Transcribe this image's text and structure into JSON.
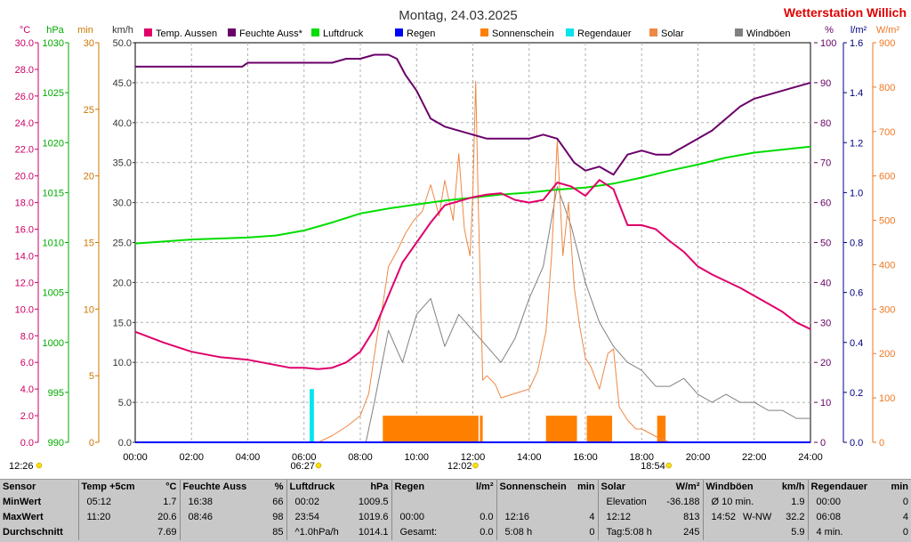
{
  "title": "Montag, 24.03.2025",
  "station": "Wetterstation Willich",
  "axis_units": {
    "temp": "°C",
    "pressure": "hPa",
    "minutes": "min",
    "wind": "km/h",
    "humidity": "%",
    "rain": "l/m²",
    "solar": "W/m²"
  },
  "colors": {
    "temp": "#e0006a",
    "humidity": "#6a006a",
    "pressure": "#00dd00",
    "rain": "#0000ff",
    "sunshine": "#ff8000",
    "rainduration": "#00e5ee",
    "solar": "#ee8844",
    "wind": "#808080"
  },
  "legend": [
    {
      "label": "Temp. Aussen",
      "color": "#e0006a"
    },
    {
      "label": "Feuchte Auss*",
      "color": "#6a006a"
    },
    {
      "label": "Luftdruck",
      "color": "#00dd00"
    },
    {
      "label": "Regen",
      "color": "#0000ff"
    },
    {
      "label": "Sonnenschein",
      "color": "#ff8000"
    },
    {
      "label": "Regendauer",
      "color": "#00e5ee"
    },
    {
      "label": "Solar",
      "color": "#ee8844"
    },
    {
      "label": "Windböen",
      "color": "#808080"
    }
  ],
  "time_markers": [
    {
      "label": "12:26",
      "hour": null
    },
    {
      "label": "06:27",
      "hour": 6.45
    },
    {
      "label": "12:02",
      "hour": 12.03
    },
    {
      "label": "18:54",
      "hour": 18.9
    }
  ],
  "chart_data": {
    "type": "line",
    "x_ticks": [
      "00:00",
      "02:00",
      "04:00",
      "06:00",
      "08:00",
      "10:00",
      "12:00",
      "14:00",
      "16:00",
      "18:00",
      "20:00",
      "22:00",
      "24:00"
    ],
    "xlim": [
      0,
      24
    ],
    "axes": {
      "temp": {
        "lim": [
          0,
          30
        ],
        "ticks": [
          "0.0",
          "2.0",
          "4.0",
          "6.0",
          "8.0",
          "10.0",
          "12.0",
          "14.0",
          "16.0",
          "18.0",
          "20.0",
          "22.0",
          "24.0",
          "26.0",
          "28.0",
          "30.0"
        ]
      },
      "pressure": {
        "lim": [
          990,
          1030
        ],
        "ticks": [
          "990",
          "995",
          "1000",
          "1005",
          "1010",
          "1015",
          "1020",
          "1025",
          "1030"
        ]
      },
      "minutes": {
        "lim": [
          0,
          30
        ],
        "ticks": [
          "0",
          "5",
          "10",
          "15",
          "20",
          "25",
          "30"
        ]
      },
      "wind": {
        "lim": [
          0,
          50
        ],
        "ticks": [
          "0.0",
          "5.0",
          "10.0",
          "15.0",
          "20.0",
          "25.0",
          "30.0",
          "35.0",
          "40.0",
          "45.0",
          "50.0"
        ]
      },
      "humidity": {
        "lim": [
          0,
          100
        ],
        "ticks": [
          "0",
          "10",
          "20",
          "30",
          "40",
          "50",
          "60",
          "70",
          "80",
          "90",
          "100"
        ]
      },
      "rain": {
        "lim": [
          0,
          1.6
        ],
        "ticks": [
          "0.0",
          "0.2",
          "0.4",
          "0.6",
          "0.8",
          "1.0",
          "1.2",
          "1.4",
          "1.6"
        ]
      },
      "solar": {
        "lim": [
          0,
          900
        ],
        "ticks": [
          "0",
          "100",
          "200",
          "300",
          "400",
          "500",
          "600",
          "700",
          "800",
          "900"
        ]
      }
    },
    "series": [
      {
        "name": "Temp. Aussen",
        "axis": "temp",
        "x": [
          0,
          1,
          2,
          3,
          4,
          5,
          5.5,
          6,
          6.5,
          7,
          7.5,
          8,
          8.5,
          9,
          9.5,
          10,
          10.5,
          11,
          11.5,
          12,
          12.5,
          13,
          13.5,
          14,
          14.5,
          15,
          15.5,
          16,
          16.5,
          17,
          17.5,
          18,
          18.5,
          19,
          19.5,
          20,
          20.5,
          21,
          21.5,
          22,
          22.5,
          23,
          23.5,
          24
        ],
        "y": [
          8.3,
          7.5,
          6.8,
          6.4,
          6.2,
          5.8,
          5.6,
          5.6,
          5.5,
          5.6,
          6.0,
          6.8,
          8.5,
          11.0,
          13.5,
          15.0,
          16.5,
          17.8,
          18.1,
          18.4,
          18.6,
          18.7,
          18.2,
          18.0,
          18.2,
          19.5,
          19.2,
          18.5,
          19.7,
          19.0,
          16.3,
          16.3,
          16.0,
          15.1,
          14.3,
          13.2,
          12.6,
          12.1,
          11.6,
          11.0,
          10.4,
          9.8,
          9.0,
          8.5
        ]
      },
      {
        "name": "Feuchte Auss*",
        "axis": "humidity",
        "x": [
          0,
          1,
          2,
          3,
          3.8,
          4,
          5,
          5.5,
          6,
          6.5,
          7,
          7.5,
          8,
          8.5,
          9,
          9.3,
          9.6,
          10,
          10.5,
          11,
          11.5,
          12,
          12.5,
          13,
          13.5,
          14,
          14.5,
          15,
          15.3,
          15.6,
          16,
          16.5,
          17,
          17.5,
          18,
          18.5,
          19,
          19.5,
          20,
          20.5,
          21,
          21.5,
          22,
          22.5,
          23,
          23.5,
          24
        ],
        "y": [
          94,
          94,
          94,
          94,
          94,
          95,
          95,
          95,
          95,
          95,
          95,
          96,
          96,
          97,
          97,
          96,
          92,
          88,
          81,
          79,
          78,
          77,
          76,
          76,
          76,
          76,
          77,
          76,
          73,
          70,
          68,
          69,
          67,
          72,
          73,
          72,
          72,
          74,
          76,
          78,
          81,
          84,
          86,
          87,
          88,
          89,
          90
        ]
      },
      {
        "name": "Luftdruck",
        "axis": "pressure",
        "x": [
          0,
          1,
          2,
          3,
          4,
          5,
          6,
          7,
          8,
          9,
          10,
          11,
          12,
          13,
          14,
          15,
          16,
          17,
          18,
          19,
          20,
          21,
          22,
          23,
          24
        ],
        "y": [
          1009.9,
          1010.1,
          1010.3,
          1010.4,
          1010.5,
          1010.7,
          1011.2,
          1012.0,
          1012.9,
          1013.4,
          1013.8,
          1014.2,
          1014.5,
          1014.8,
          1015.0,
          1015.3,
          1015.5,
          1015.9,
          1016.5,
          1017.2,
          1017.8,
          1018.5,
          1019.0,
          1019.3,
          1019.6
        ]
      },
      {
        "name": "Regen",
        "axis": "rain",
        "x": [
          0,
          24
        ],
        "y": [
          0,
          0
        ]
      },
      {
        "name": "Solar",
        "axis": "solar",
        "x": [
          0,
          6.5,
          7,
          7.5,
          8,
          8.3,
          8.6,
          8.8,
          9,
          9.3,
          9.6,
          9.9,
          10.2,
          10.5,
          10.8,
          11,
          11.3,
          11.5,
          11.7,
          11.9,
          12.0,
          12.1,
          12.2,
          12.35,
          12.5,
          12.8,
          13,
          13.5,
          14,
          14.3,
          14.6,
          14.8,
          15,
          15.2,
          15.4,
          15.6,
          15.8,
          16.0,
          16.2,
          16.5,
          16.8,
          17,
          17.2,
          17.5,
          17.8,
          18,
          18.3,
          18.6,
          19,
          24
        ],
        "y": [
          0,
          0,
          15,
          35,
          60,
          110,
          240,
          310,
          395,
          430,
          470,
          500,
          520,
          580,
          510,
          590,
          500,
          650,
          480,
          420,
          560,
          813,
          520,
          140,
          150,
          130,
          100,
          110,
          120,
          160,
          250,
          420,
          680,
          420,
          540,
          350,
          260,
          190,
          170,
          120,
          200,
          210,
          80,
          50,
          30,
          30,
          20,
          10,
          0,
          0
        ]
      },
      {
        "name": "Windböen",
        "axis": "wind",
        "x": [
          0,
          8.2,
          8.5,
          9,
          9.5,
          10,
          10.5,
          11,
          11.5,
          12,
          12.5,
          13,
          13.5,
          14,
          14.5,
          15,
          15.5,
          16,
          16.5,
          17,
          17.5,
          18,
          18.5,
          19,
          19.5,
          20,
          20.5,
          21,
          21.5,
          22,
          22.5,
          23,
          23.5,
          24
        ],
        "y": [
          0,
          0,
          5,
          14,
          10,
          16,
          18,
          12,
          16,
          14,
          12,
          10,
          13,
          18,
          22,
          32,
          27,
          20,
          15,
          12,
          10,
          9,
          7,
          7,
          8,
          6,
          5,
          6,
          5,
          5,
          4,
          4,
          3,
          3
        ]
      }
    ],
    "sunshine_blocks": [
      [
        8.8,
        12.2
      ],
      [
        12.25,
        12.35
      ],
      [
        14.6,
        15.7
      ],
      [
        16.05,
        16.95
      ],
      [
        18.55,
        18.85
      ]
    ],
    "sunshine_value": 2.0,
    "rainduration_blocks": [
      [
        6.2,
        6.35
      ]
    ],
    "rainduration_value": 4.0
  },
  "stats": {
    "columns": [
      {
        "title": "Sensor",
        "unit": "",
        "rows": [
          [
            "MinWert",
            "",
            ""
          ],
          [
            "MaxWert",
            "",
            ""
          ],
          [
            "Durchschnitt",
            "",
            ""
          ]
        ]
      },
      {
        "title": "Temp +5cm",
        "unit": "°C",
        "rows": [
          [
            "05:12",
            "",
            "1.7"
          ],
          [
            "11:20",
            "",
            "20.6"
          ],
          [
            "",
            "",
            "7.69"
          ]
        ]
      },
      {
        "title": "Feuchte Auss",
        "unit": "%",
        "rows": [
          [
            "16:38",
            "",
            "66"
          ],
          [
            "08:46",
            "",
            "98"
          ],
          [
            "",
            "",
            "85"
          ]
        ]
      },
      {
        "title": "Luftdruck",
        "unit": "hPa",
        "rows": [
          [
            "00:02",
            "",
            "1009.5"
          ],
          [
            "23:54",
            "",
            "1019.6"
          ],
          [
            "^1.0hPa/h",
            "",
            "1014.1"
          ]
        ]
      },
      {
        "title": "Regen",
        "unit": "l/m²",
        "rows": [
          [
            "",
            "",
            ""
          ],
          [
            "00:00",
            "",
            "0.0"
          ],
          [
            "Gesamt:",
            "",
            "0.0"
          ]
        ]
      },
      {
        "title": "Sonnenschein",
        "unit": "min",
        "rows": [
          [
            "",
            "",
            ""
          ],
          [
            "12:16",
            "",
            "4"
          ],
          [
            "5:08 h",
            "",
            "0"
          ]
        ]
      },
      {
        "title": "Solar",
        "unit": "W/m²",
        "rows": [
          [
            "Elevation",
            "",
            "-36.188"
          ],
          [
            "12:12",
            "",
            "813"
          ],
          [
            "Tag:5:08 h",
            "",
            "245"
          ]
        ]
      },
      {
        "title": "Windböen",
        "unit": "km/h",
        "rows": [
          [
            "Ø 10 min.",
            "",
            "1.9"
          ],
          [
            "14:52",
            "W-NW",
            "32.2"
          ],
          [
            "",
            "",
            "5.9"
          ]
        ]
      },
      {
        "title": "Regendauer",
        "unit": "min",
        "rows": [
          [
            "00:00",
            "",
            "0"
          ],
          [
            "06:08",
            "",
            "4"
          ],
          [
            "4 min.",
            "",
            "0"
          ]
        ]
      }
    ]
  }
}
